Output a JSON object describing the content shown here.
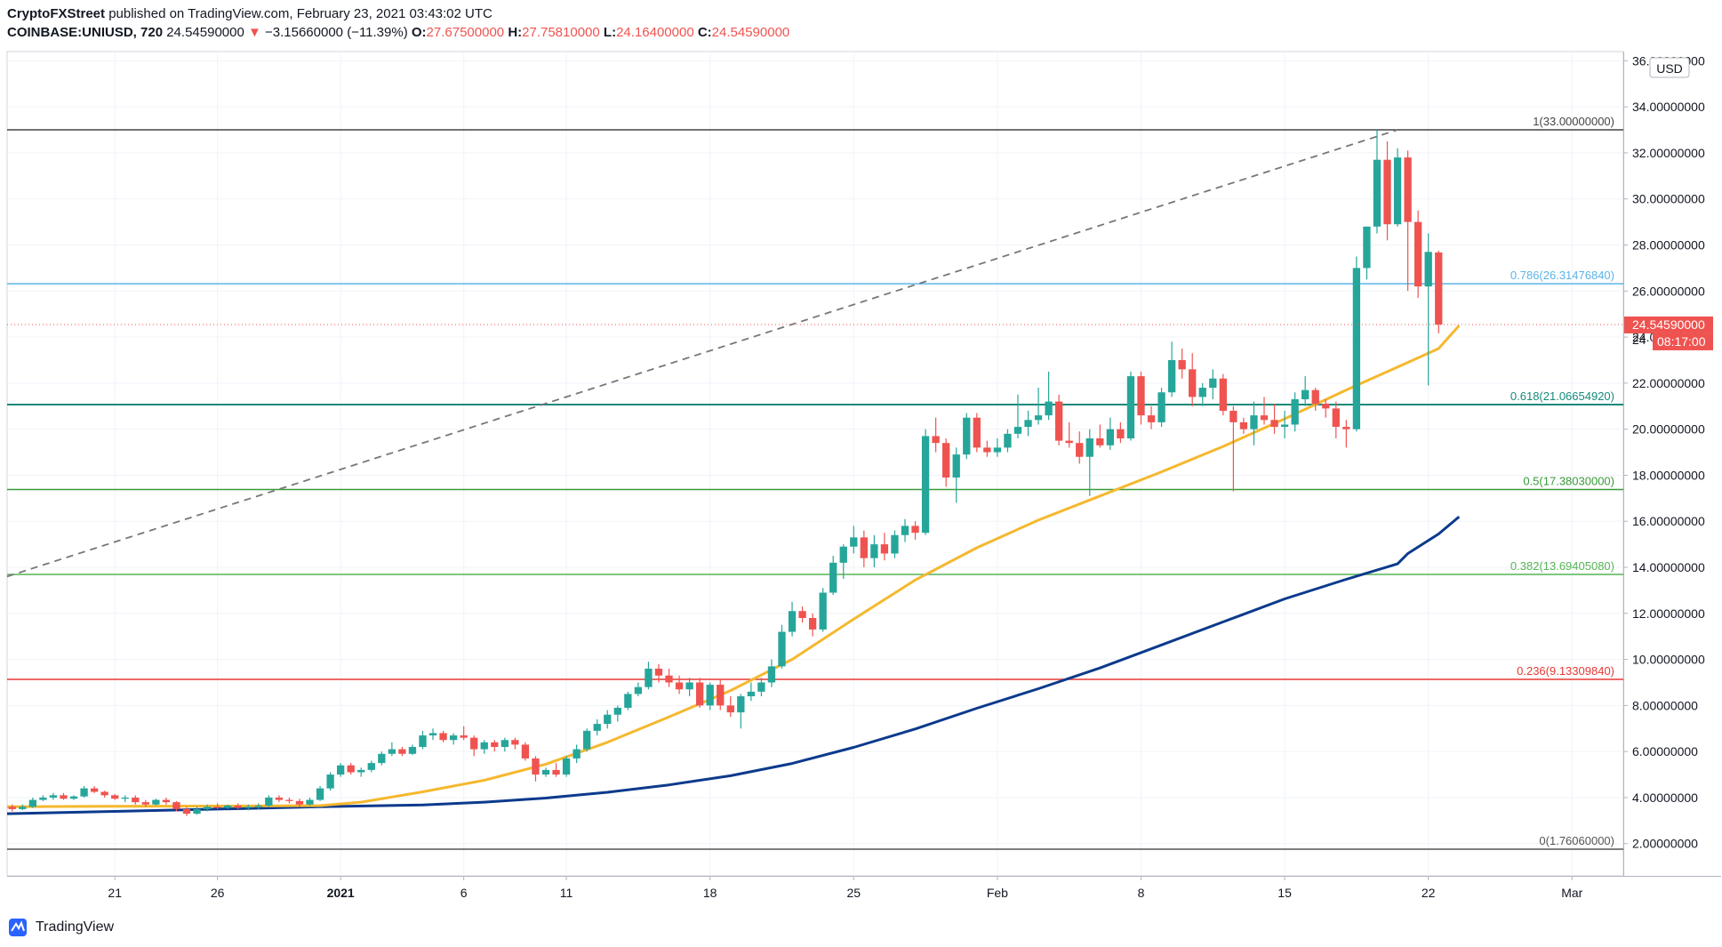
{
  "header": {
    "publisher": "CryptoFXStreet",
    "published_line": " published on TradingView.com, February 23, 2021 03:43:02 UTC",
    "symbol": "COINBASE:UNIUSD, 720",
    "last": "24.54590000",
    "change": "−3.15660000 (−11.39%)",
    "o_label": "O:",
    "o_value": "27.67500000",
    "h_label": "H:",
    "h_value": "27.75810000",
    "l_label": "L:",
    "l_value": "24.16400000",
    "c_label": "C:",
    "c_value": "24.54590000"
  },
  "footer": {
    "brand": "TradingView"
  },
  "colors": {
    "up": "#26a69a",
    "down": "#ef5350",
    "ma_fast": "#f5b82e",
    "ma_slow": "#0c3a8c",
    "fib_top": "#444444",
    "fib_786": "#5bb4e8",
    "fib_618": "#178a7a",
    "fib_5": "#3a9a3a",
    "fib_382": "#55b455",
    "fib_236": "#e53935",
    "fib_0": "#555555"
  },
  "chart_data": {
    "type": "candlestick",
    "title": "",
    "ylabel": "USD",
    "ylim": [
      0.6,
      36.4
    ],
    "y_ticks": [
      "2.00000000",
      "4.00000000",
      "6.00000000",
      "8.00000000",
      "10.00000000",
      "12.00000000",
      "14.00000000",
      "16.00000000",
      "18.00000000",
      "20.00000000",
      "22.00000000",
      "24.00000000",
      "26.00000000",
      "28.00000000",
      "30.00000000",
      "32.00000000",
      "34.00000000",
      "36.00000000"
    ],
    "y_tick_values": [
      2,
      4,
      6,
      8,
      10,
      12,
      14,
      16,
      18,
      20,
      22,
      24,
      26,
      28,
      30,
      32,
      34,
      36
    ],
    "x_ticks": [
      {
        "label": "21",
        "day": 0
      },
      {
        "label": "26",
        "day": 5
      },
      {
        "label": "2021",
        "day": 11,
        "bold": true
      },
      {
        "label": "6",
        "day": 17
      },
      {
        "label": "11",
        "day": 22
      },
      {
        "label": "18",
        "day": 29
      },
      {
        "label": "25",
        "day": 36
      },
      {
        "label": "Feb",
        "day": 43
      },
      {
        "label": "8",
        "day": 50
      },
      {
        "label": "15",
        "day": 57
      },
      {
        "label": "22",
        "day": 64
      },
      {
        "label": "Mar",
        "day": 71
      }
    ],
    "x_range_days": [
      -5.25,
      73.5
    ],
    "fib_levels": [
      {
        "label": "1(33.00000000)",
        "value": 33.0,
        "color_key": "fib_top"
      },
      {
        "label": "0.786(26.31476840)",
        "value": 26.3148,
        "color_key": "fib_786"
      },
      {
        "label": "0.618(21.06654920)",
        "value": 21.0665,
        "color_key": "fib_618"
      },
      {
        "label": "0.5(17.38030000)",
        "value": 17.3803,
        "color_key": "fib_5"
      },
      {
        "label": "0.382(13.69405080)",
        "value": 13.6941,
        "color_key": "fib_382"
      },
      {
        "label": "0.236(9.13309840)",
        "value": 9.1331,
        "color_key": "fib_236"
      },
      {
        "label": "0(1.76060000)",
        "value": 1.7606,
        "color_key": "fib_0"
      }
    ],
    "trend_line": {
      "start": {
        "day": -5.25,
        "value": 13.6
      },
      "end": {
        "day": 62.5,
        "value": 33.0
      }
    },
    "last_price": {
      "value": 24.5459,
      "label": "24.54590000",
      "countdown": "08:17:00",
      "stub": "24"
    },
    "candles_start_day": -5.0,
    "candle_step_days": 0.5,
    "candles": [
      [
        3.6,
        3.7,
        3.4,
        3.5
      ],
      [
        3.5,
        3.7,
        3.45,
        3.6
      ],
      [
        3.6,
        4.0,
        3.55,
        3.9
      ],
      [
        3.9,
        4.1,
        3.85,
        4.0
      ],
      [
        4.0,
        4.2,
        3.9,
        4.1
      ],
      [
        4.1,
        4.2,
        3.9,
        3.95
      ],
      [
        3.95,
        4.1,
        3.9,
        4.05
      ],
      [
        4.05,
        4.5,
        4.0,
        4.4
      ],
      [
        4.4,
        4.5,
        4.2,
        4.25
      ],
      [
        4.25,
        4.3,
        4.0,
        4.1
      ],
      [
        4.1,
        4.15,
        3.9,
        3.95
      ],
      [
        3.95,
        4.1,
        3.8,
        4.0
      ],
      [
        4.0,
        4.1,
        3.7,
        3.8
      ],
      [
        3.8,
        3.9,
        3.6,
        3.7
      ],
      [
        3.7,
        3.95,
        3.65,
        3.9
      ],
      [
        3.9,
        4.0,
        3.7,
        3.8
      ],
      [
        3.8,
        3.85,
        3.4,
        3.5
      ],
      [
        3.5,
        3.6,
        3.2,
        3.3
      ],
      [
        3.3,
        3.6,
        3.25,
        3.5
      ],
      [
        3.5,
        3.7,
        3.4,
        3.6
      ],
      [
        3.6,
        3.75,
        3.5,
        3.55
      ],
      [
        3.55,
        3.7,
        3.5,
        3.65
      ],
      [
        3.65,
        3.75,
        3.5,
        3.55
      ],
      [
        3.55,
        3.7,
        3.45,
        3.6
      ],
      [
        3.6,
        3.75,
        3.5,
        3.65
      ],
      [
        3.65,
        4.1,
        3.6,
        4.0
      ],
      [
        4.0,
        4.1,
        3.8,
        3.9
      ],
      [
        3.9,
        4.0,
        3.75,
        3.85
      ],
      [
        3.85,
        3.95,
        3.6,
        3.7
      ],
      [
        3.7,
        4.0,
        3.65,
        3.9
      ],
      [
        3.9,
        4.5,
        3.85,
        4.4
      ],
      [
        4.4,
        5.1,
        4.3,
        5.0
      ],
      [
        5.0,
        5.5,
        4.9,
        5.4
      ],
      [
        5.4,
        5.5,
        5.0,
        5.1
      ],
      [
        5.1,
        5.3,
        4.9,
        5.2
      ],
      [
        5.2,
        5.6,
        5.1,
        5.5
      ],
      [
        5.5,
        6.0,
        5.4,
        5.9
      ],
      [
        5.9,
        6.4,
        5.8,
        6.1
      ],
      [
        6.1,
        6.2,
        5.8,
        5.9
      ],
      [
        5.9,
        6.3,
        5.85,
        6.2
      ],
      [
        6.2,
        6.9,
        6.1,
        6.7
      ],
      [
        6.7,
        7.0,
        6.5,
        6.8
      ],
      [
        6.8,
        6.9,
        6.4,
        6.5
      ],
      [
        6.5,
        6.8,
        6.3,
        6.7
      ],
      [
        6.7,
        7.1,
        6.5,
        6.6
      ],
      [
        6.6,
        6.7,
        5.8,
        6.1
      ],
      [
        6.1,
        6.5,
        5.9,
        6.4
      ],
      [
        6.4,
        6.5,
        6.0,
        6.2
      ],
      [
        6.2,
        6.6,
        6.0,
        6.5
      ],
      [
        6.5,
        6.6,
        6.1,
        6.3
      ],
      [
        6.3,
        6.4,
        5.6,
        5.7
      ],
      [
        5.7,
        5.8,
        4.7,
        5.0
      ],
      [
        5.0,
        5.3,
        4.9,
        5.2
      ],
      [
        5.2,
        5.5,
        4.9,
        5.0
      ],
      [
        5.0,
        5.8,
        4.9,
        5.7
      ],
      [
        5.7,
        6.3,
        5.5,
        6.1
      ],
      [
        6.1,
        7.0,
        6.0,
        6.9
      ],
      [
        6.9,
        7.4,
        6.7,
        7.2
      ],
      [
        7.2,
        7.8,
        7.0,
        7.6
      ],
      [
        7.6,
        8.0,
        7.3,
        7.9
      ],
      [
        7.9,
        8.6,
        7.8,
        8.5
      ],
      [
        8.5,
        9.0,
        8.4,
        8.8
      ],
      [
        8.8,
        9.9,
        8.7,
        9.6
      ],
      [
        9.6,
        9.8,
        9.0,
        9.3
      ],
      [
        9.3,
        9.6,
        8.8,
        9.0
      ],
      [
        9.0,
        9.3,
        8.5,
        8.7
      ],
      [
        8.7,
        9.2,
        8.4,
        9.0
      ],
      [
        9.0,
        9.2,
        7.9,
        8.0
      ],
      [
        8.0,
        9.0,
        7.8,
        8.9
      ],
      [
        8.9,
        9.1,
        7.8,
        8.0
      ],
      [
        8.0,
        8.4,
        7.5,
        7.7
      ],
      [
        7.7,
        8.5,
        7.0,
        8.4
      ],
      [
        8.4,
        9.0,
        8.2,
        8.6
      ],
      [
        8.6,
        9.2,
        8.4,
        9.0
      ],
      [
        9.0,
        10.0,
        8.8,
        9.7
      ],
      [
        9.7,
        11.5,
        9.6,
        11.2
      ],
      [
        11.2,
        12.5,
        11.0,
        12.1
      ],
      [
        12.1,
        12.3,
        11.6,
        11.8
      ],
      [
        11.8,
        12.0,
        11.0,
        11.3
      ],
      [
        11.3,
        13.1,
        11.2,
        12.9
      ],
      [
        12.9,
        14.5,
        12.8,
        14.2
      ],
      [
        14.2,
        15.0,
        13.5,
        14.9
      ],
      [
        14.9,
        15.8,
        14.6,
        15.3
      ],
      [
        15.3,
        15.6,
        14.0,
        14.4
      ],
      [
        14.4,
        15.4,
        14.0,
        15.0
      ],
      [
        15.0,
        15.5,
        14.3,
        14.6
      ],
      [
        14.6,
        15.6,
        14.4,
        15.4
      ],
      [
        15.4,
        16.1,
        15.1,
        15.8
      ],
      [
        15.8,
        16.0,
        15.2,
        15.5
      ],
      [
        15.5,
        20.0,
        15.4,
        19.7
      ],
      [
        19.7,
        20.5,
        19.0,
        19.4
      ],
      [
        19.4,
        19.6,
        17.5,
        17.9
      ],
      [
        17.9,
        19.2,
        16.8,
        18.9
      ],
      [
        18.9,
        20.7,
        18.7,
        20.5
      ],
      [
        20.5,
        20.7,
        19.0,
        19.2
      ],
      [
        19.2,
        19.5,
        18.8,
        19.0
      ],
      [
        19.0,
        19.6,
        18.8,
        19.2
      ],
      [
        19.2,
        20.0,
        19.0,
        19.8
      ],
      [
        19.8,
        21.5,
        19.6,
        20.1
      ],
      [
        20.1,
        20.8,
        19.7,
        20.4
      ],
      [
        20.4,
        21.8,
        20.2,
        20.6
      ],
      [
        20.6,
        22.5,
        20.4,
        21.2
      ],
      [
        21.2,
        21.5,
        19.3,
        19.5
      ],
      [
        19.5,
        20.3,
        19.2,
        19.4
      ],
      [
        19.4,
        19.9,
        18.5,
        18.8
      ],
      [
        18.8,
        20.0,
        17.1,
        19.6
      ],
      [
        19.6,
        20.2,
        19.2,
        19.3
      ],
      [
        19.3,
        20.5,
        19.1,
        20.0
      ],
      [
        20.0,
        20.3,
        19.4,
        19.6
      ],
      [
        19.6,
        22.5,
        19.5,
        22.3
      ],
      [
        22.3,
        22.5,
        20.2,
        20.6
      ],
      [
        20.6,
        21.0,
        20.0,
        20.3
      ],
      [
        20.3,
        21.8,
        20.1,
        21.6
      ],
      [
        21.6,
        23.8,
        21.4,
        23.0
      ],
      [
        23.0,
        23.5,
        22.2,
        22.6
      ],
      [
        22.6,
        23.3,
        21.0,
        21.4
      ],
      [
        21.4,
        22.0,
        21.0,
        21.8
      ],
      [
        21.8,
        22.6,
        21.3,
        22.2
      ],
      [
        22.2,
        22.4,
        20.6,
        20.8
      ],
      [
        20.8,
        21.0,
        17.3,
        20.3
      ],
      [
        20.3,
        20.5,
        19.8,
        20.0
      ],
      [
        20.0,
        21.2,
        19.3,
        20.6
      ],
      [
        20.6,
        21.4,
        20.2,
        20.4
      ],
      [
        20.4,
        21.1,
        19.8,
        20.1
      ],
      [
        20.1,
        20.8,
        19.6,
        20.2
      ],
      [
        20.2,
        21.6,
        19.9,
        21.3
      ],
      [
        21.3,
        22.3,
        21.0,
        21.7
      ],
      [
        21.7,
        21.8,
        20.8,
        21.1
      ],
      [
        21.1,
        21.3,
        20.5,
        20.9
      ],
      [
        20.9,
        21.2,
        19.6,
        20.1
      ],
      [
        20.1,
        20.4,
        19.2,
        20.0
      ],
      [
        20.0,
        27.5,
        19.9,
        27.0
      ],
      [
        27.0,
        28.8,
        26.5,
        28.8
      ],
      [
        28.8,
        33.0,
        28.5,
        31.7
      ],
      [
        31.7,
        32.5,
        28.2,
        28.9
      ],
      [
        28.9,
        32.2,
        28.8,
        31.8
      ],
      [
        31.8,
        32.1,
        26.0,
        29.0
      ],
      [
        29.0,
        29.5,
        25.7,
        26.2
      ],
      [
        26.2,
        28.5,
        21.9,
        27.7
      ],
      [
        27.675,
        27.7581,
        24.164,
        24.5459
      ]
    ],
    "ma_fast": {
      "name": "",
      "days": [
        -5.25,
        0,
        5,
        10,
        12,
        15,
        18,
        21,
        24,
        27,
        30,
        33,
        36,
        39,
        42,
        45,
        48,
        51,
        54,
        57,
        60,
        63,
        64.5,
        65.5
      ],
      "values": [
        3.6,
        3.62,
        3.63,
        3.65,
        3.8,
        4.25,
        4.75,
        5.45,
        6.4,
        7.5,
        8.65,
        10.0,
        11.75,
        13.45,
        14.85,
        16.05,
        17.1,
        18.15,
        19.25,
        20.45,
        21.7,
        22.9,
        23.5,
        24.5
      ]
    },
    "ma_slow": {
      "name": "",
      "days": [
        -5.25,
        0,
        5,
        10,
        15,
        18,
        21,
        24,
        27,
        30,
        33,
        36,
        39,
        42,
        45,
        48,
        51,
        54,
        57,
        60,
        62.5,
        63,
        64.5,
        65.5
      ],
      "values": [
        3.3,
        3.4,
        3.5,
        3.6,
        3.68,
        3.8,
        3.98,
        4.23,
        4.55,
        4.95,
        5.48,
        6.18,
        6.98,
        7.88,
        8.73,
        9.63,
        10.63,
        11.63,
        12.63,
        13.48,
        14.15,
        14.6,
        15.45,
        16.2
      ]
    }
  }
}
